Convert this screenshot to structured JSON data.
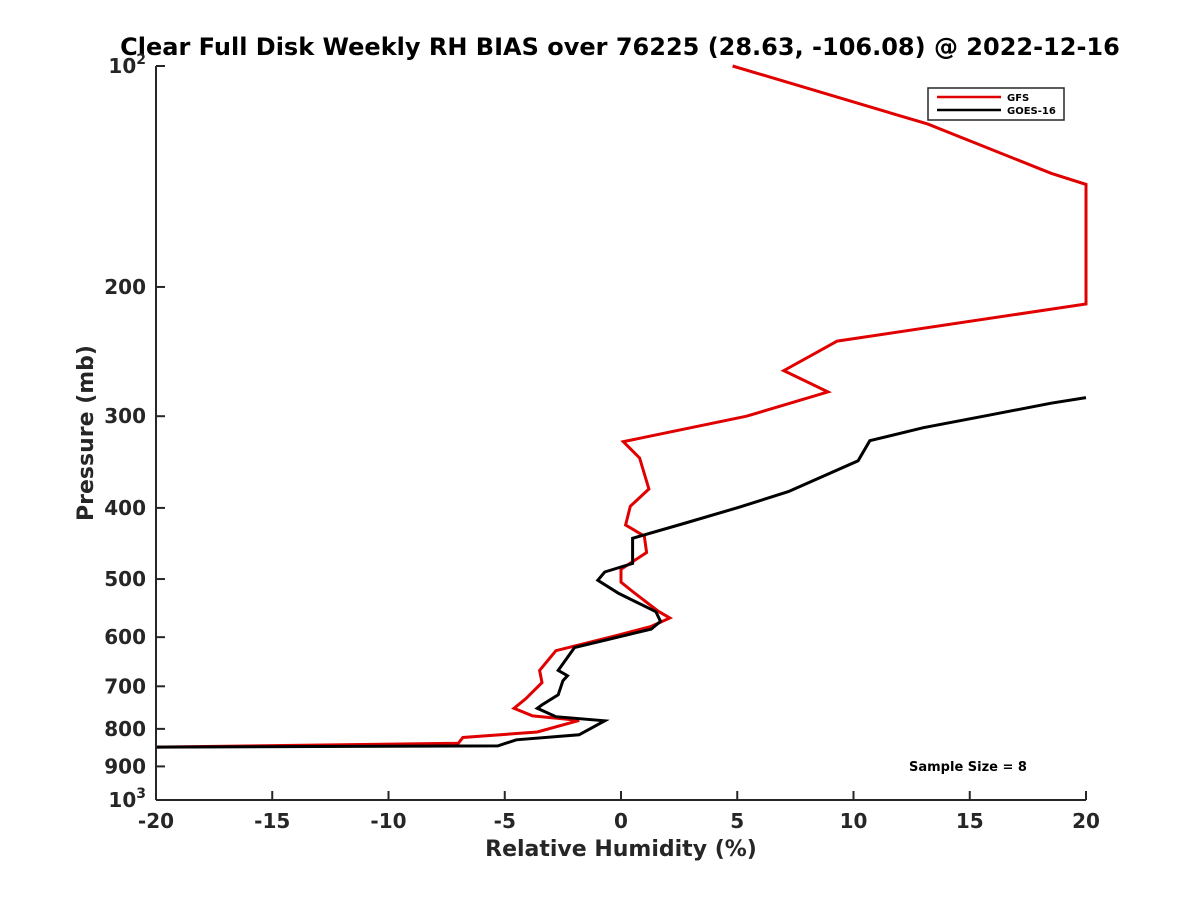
{
  "chart_data": {
    "type": "line",
    "title": "Clear Full Disk Weekly RH BIAS over 76225 (28.63, -106.08) @ 2022-12-16",
    "xlabel": "Relative Humidity (%)",
    "ylabel": "Pressure (mb)",
    "xlim": [
      -20,
      20
    ],
    "ylim": [
      1000,
      100
    ],
    "yscale": "log",
    "y_reversed": true,
    "grid": false,
    "legend_position": "top-right",
    "x_ticks": [
      -20,
      -15,
      -10,
      -5,
      0,
      5,
      10,
      15,
      20
    ],
    "x_tick_labels": [
      "-20",
      "-15",
      "-10",
      "-5",
      "0",
      "5",
      "10",
      "15",
      "20"
    ],
    "y_ticks": [
      {
        "value": 100,
        "base": "10",
        "exp": "2"
      },
      {
        "value": 200,
        "label": "200"
      },
      {
        "value": 300,
        "label": "300"
      },
      {
        "value": 400,
        "label": "400"
      },
      {
        "value": 500,
        "label": "500"
      },
      {
        "value": 600,
        "label": "600"
      },
      {
        "value": 700,
        "label": "700"
      },
      {
        "value": 800,
        "label": "800"
      },
      {
        "value": 900,
        "label": "900"
      },
      {
        "value": 1000,
        "base": "10",
        "exp": "3"
      }
    ],
    "annotation": "Sample Size = 8",
    "series": [
      {
        "name": "GFS",
        "color": "#e00000",
        "points": [
          [
            4.8,
            100
          ],
          [
            13.2,
            120
          ],
          [
            18.5,
            140
          ],
          [
            20.0,
            145
          ],
          [
            20.0,
            211
          ],
          [
            9.3,
            237
          ],
          [
            7.0,
            260
          ],
          [
            8.9,
            278
          ],
          [
            5.4,
            300
          ],
          [
            0.1,
            325
          ],
          [
            0.8,
            342
          ],
          [
            1.2,
            377
          ],
          [
            0.4,
            398
          ],
          [
            0.2,
            422
          ],
          [
            1.0,
            437
          ],
          [
            1.1,
            460
          ],
          [
            0.0,
            485
          ],
          [
            0.0,
            505
          ],
          [
            0.5,
            520
          ],
          [
            1.6,
            553
          ],
          [
            2.1,
            565
          ],
          [
            1.3,
            580
          ],
          [
            -0.2,
            597
          ],
          [
            -2.8,
            626
          ],
          [
            -3.5,
            666
          ],
          [
            -3.4,
            692
          ],
          [
            -4.1,
            728
          ],
          [
            -4.6,
            750
          ],
          [
            -3.8,
            768
          ],
          [
            -1.8,
            779
          ],
          [
            -3.6,
            808
          ],
          [
            -6.8,
            822
          ],
          [
            -7.0,
            837
          ],
          [
            -20.0,
            847
          ]
        ]
      },
      {
        "name": "GOES-16",
        "color": "#000000",
        "points": [
          [
            20.0,
            283
          ],
          [
            18.5,
            288
          ],
          [
            15.6,
            300
          ],
          [
            13.0,
            311
          ],
          [
            10.7,
            324
          ],
          [
            10.2,
            345
          ],
          [
            7.2,
            380
          ],
          [
            5.1,
            399
          ],
          [
            2.7,
            420
          ],
          [
            0.5,
            440
          ],
          [
            0.5,
            476
          ],
          [
            -0.7,
            489
          ],
          [
            -1.0,
            502
          ],
          [
            -0.1,
            523
          ],
          [
            1.5,
            554
          ],
          [
            1.7,
            571
          ],
          [
            1.3,
            585
          ],
          [
            -2.0,
            620
          ],
          [
            -2.7,
            666
          ],
          [
            -2.3,
            677
          ],
          [
            -2.5,
            688
          ],
          [
            -2.7,
            719
          ],
          [
            -3.4,
            742
          ],
          [
            -3.6,
            750
          ],
          [
            -2.8,
            770
          ],
          [
            -0.7,
            780
          ],
          [
            -1.8,
            815
          ],
          [
            -4.5,
            828
          ],
          [
            -5.3,
            844
          ],
          [
            -20.0,
            847
          ]
        ]
      }
    ]
  }
}
